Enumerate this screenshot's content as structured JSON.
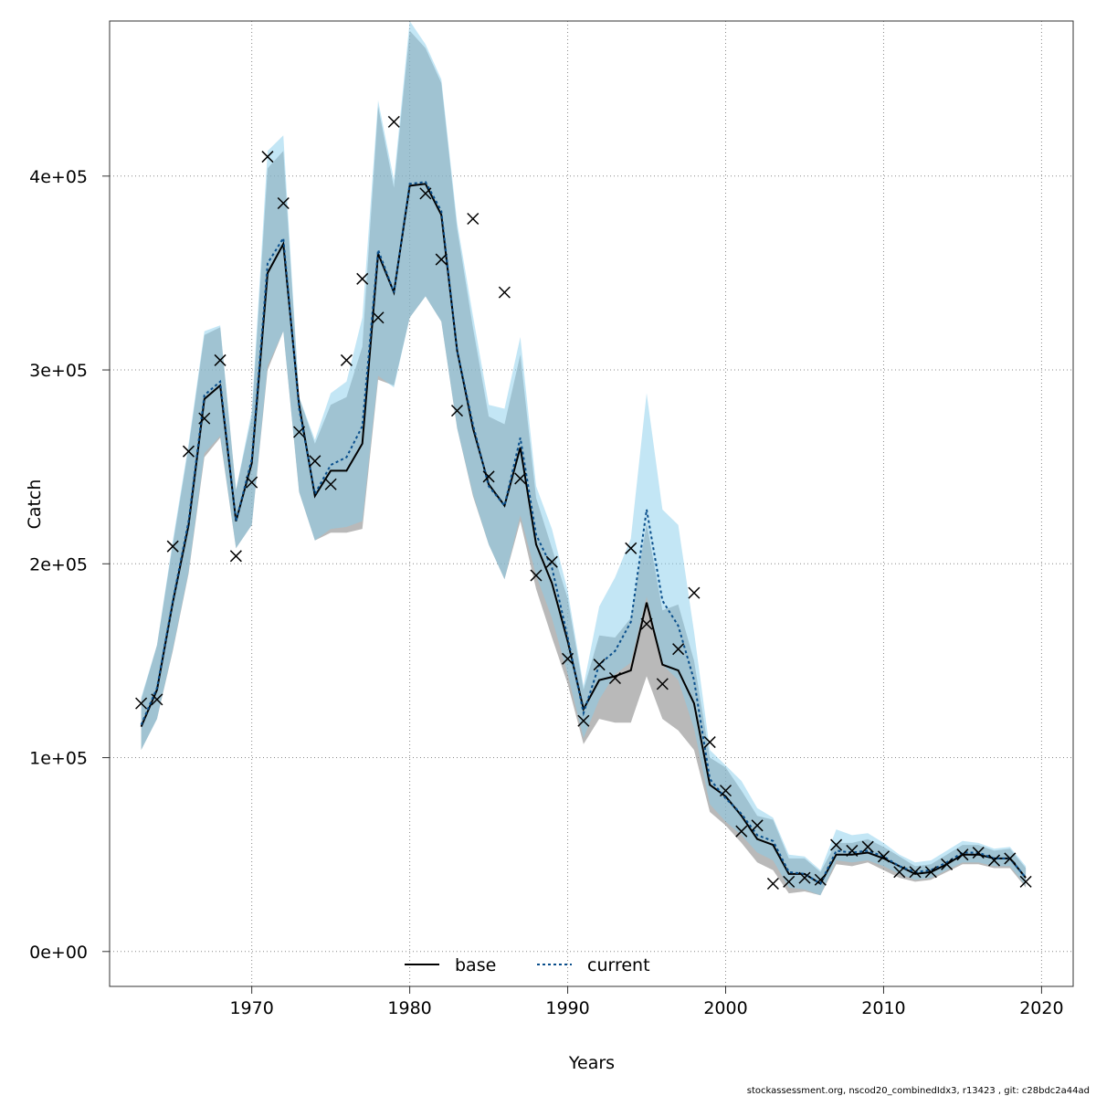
{
  "chart_data": {
    "type": "line",
    "xlabel": "Years",
    "ylabel": "Catch",
    "xlim": [
      1961,
      2022
    ],
    "ylim": [
      -18000,
      480000
    ],
    "x_ticks": [
      1970,
      1980,
      1990,
      2000,
      2010,
      2020
    ],
    "y_ticks": [
      0,
      100000,
      200000,
      300000,
      400000
    ],
    "y_tick_labels": [
      "0e+00",
      "1e+05",
      "2e+05",
      "3e+05",
      "4e+05"
    ],
    "grid": true,
    "legend_placement": "bottom",
    "colors": {
      "base_line": "#000000",
      "current_line": "#0a4f8c",
      "base_band": "#808080",
      "current_band": "#87ceeb"
    },
    "years": [
      1963,
      1964,
      1965,
      1966,
      1967,
      1968,
      1969,
      1970,
      1971,
      1972,
      1973,
      1974,
      1975,
      1976,
      1977,
      1978,
      1979,
      1980,
      1981,
      1982,
      1983,
      1984,
      1985,
      1986,
      1987,
      1988,
      1989,
      1990,
      1991,
      1992,
      1993,
      1994,
      1995,
      1996,
      1997,
      1998,
      1999,
      2000,
      2001,
      2002,
      2003,
      2004,
      2005,
      2006,
      2007,
      2008,
      2009,
      2010,
      2011,
      2012,
      2013,
      2014,
      2015,
      2016,
      2017,
      2018,
      2019
    ],
    "series": [
      {
        "name": "base",
        "estimate": [
          116000,
          135000,
          180000,
          220000,
          285000,
          292000,
          222000,
          252000,
          350000,
          365000,
          282000,
          235000,
          248000,
          248000,
          262000,
          360000,
          340000,
          395000,
          396000,
          380000,
          310000,
          270000,
          241000,
          230000,
          260000,
          210000,
          190000,
          160000,
          125000,
          140000,
          142000,
          145000,
          180000,
          148000,
          145000,
          128000,
          86000,
          80000,
          70000,
          58000,
          55000,
          40000,
          40000,
          35000,
          50000,
          50000,
          51000,
          48000,
          44000,
          40000,
          41000,
          45000,
          50000,
          50000,
          48000,
          48000,
          38000
        ],
        "lower": [
          104000,
          120000,
          155000,
          195000,
          255000,
          265000,
          208000,
          220000,
          300000,
          320000,
          237000,
          212000,
          216000,
          216000,
          218000,
          295000,
          292000,
          327000,
          338000,
          325000,
          270000,
          235000,
          210000,
          192000,
          222000,
          187000,
          162000,
          138000,
          107000,
          120000,
          118000,
          118000,
          142000,
          120000,
          114000,
          104000,
          72000,
          65000,
          56000,
          46000,
          42000,
          30000,
          31000,
          29000,
          45000,
          44000,
          46000,
          42000,
          38000,
          36000,
          37000,
          41000,
          45000,
          45000,
          43000,
          43000,
          33000
        ],
        "upper": [
          130000,
          158000,
          210000,
          260000,
          318000,
          322000,
          238000,
          276000,
          404000,
          413000,
          286000,
          262000,
          282000,
          286000,
          312000,
          436000,
          394000,
          475000,
          466000,
          448000,
          373000,
          322000,
          276000,
          272000,
          308000,
          234000,
          208000,
          182000,
          135000,
          163000,
          162000,
          172000,
          221000,
          176000,
          179000,
          150000,
          100000,
          95000,
          83000,
          70000,
          68000,
          48000,
          48000,
          41000,
          56000,
          56000,
          58000,
          54000,
          49000,
          44000,
          45000,
          50000,
          55000,
          55000,
          52000,
          53000,
          43000
        ]
      },
      {
        "name": "current",
        "estimate": [
          117000,
          136000,
          181000,
          222000,
          287000,
          294000,
          222000,
          254000,
          355000,
          368000,
          280000,
          236000,
          251000,
          255000,
          271000,
          362000,
          340000,
          396000,
          397000,
          382000,
          310000,
          272000,
          240000,
          230000,
          265000,
          215000,
          198000,
          162000,
          123000,
          148000,
          155000,
          170000,
          228000,
          181000,
          168000,
          140000,
          89000,
          79000,
          71000,
          60000,
          57000,
          41000,
          40000,
          35000,
          52000,
          51000,
          52000,
          49000,
          44000,
          41000,
          42000,
          46000,
          51000,
          51000,
          48000,
          48000,
          38000
        ],
        "lower": [
          104000,
          120000,
          156000,
          196000,
          257000,
          266000,
          208000,
          220000,
          302000,
          320000,
          237000,
          212000,
          218000,
          219000,
          222000,
          297000,
          291000,
          327000,
          338000,
          325000,
          270000,
          236000,
          210000,
          192000,
          225000,
          194000,
          172000,
          143000,
          110000,
          130000,
          143000,
          149000,
          183000,
          148000,
          140000,
          115000,
          76000,
          67000,
          60000,
          51000,
          47000,
          33000,
          32000,
          29000,
          47000,
          46000,
          47000,
          44000,
          40000,
          37000,
          38000,
          42000,
          46000,
          46000,
          44000,
          44000,
          34000
        ],
        "upper": [
          131000,
          158000,
          212000,
          262000,
          320000,
          323000,
          238000,
          279000,
          413000,
          421000,
          286000,
          264000,
          288000,
          294000,
          327000,
          439000,
          398000,
          480000,
          468000,
          450000,
          376000,
          328000,
          282000,
          280000,
          317000,
          240000,
          218000,
          186000,
          137000,
          178000,
          193000,
          213000,
          288000,
          228000,
          220000,
          165000,
          104000,
          96000,
          88000,
          74000,
          69000,
          50000,
          49000,
          42000,
          63000,
          60000,
          61000,
          56000,
          50000,
          46000,
          47000,
          52000,
          57000,
          56000,
          53000,
          54000,
          44000
        ]
      }
    ],
    "observations": {
      "name": "observed catch",
      "marker": "x",
      "x": [
        1963,
        1964,
        1965,
        1966,
        1967,
        1968,
        1969,
        1970,
        1971,
        1972,
        1973,
        1974,
        1975,
        1976,
        1977,
        1978,
        1979,
        1981,
        1982,
        1983,
        1984,
        1985,
        1986,
        1987,
        1988,
        1989,
        1990,
        1991,
        1992,
        1993,
        1994,
        1995,
        1996,
        1997,
        1998,
        1999,
        2000,
        2001,
        2002,
        2003,
        2004,
        2005,
        2006,
        2007,
        2008,
        2009,
        2010,
        2011,
        2012,
        2013,
        2014,
        2015,
        2016,
        2017,
        2018,
        2019
      ],
      "y": [
        128000,
        130000,
        209000,
        258000,
        275000,
        305000,
        204000,
        242000,
        410000,
        386000,
        268000,
        253000,
        241000,
        305000,
        347000,
        327000,
        428000,
        391000,
        357000,
        279000,
        378000,
        245000,
        340000,
        244000,
        194000,
        201000,
        151000,
        119000,
        148000,
        141000,
        208000,
        169000,
        138000,
        156000,
        185000,
        108000,
        83000,
        62000,
        65000,
        35000,
        36000,
        38000,
        37000,
        55000,
        52000,
        54000,
        49000,
        41000,
        41000,
        41000,
        45000,
        50000,
        51000,
        47000,
        48000,
        36000
      ]
    },
    "legend": [
      "base",
      "current"
    ],
    "footer_note": "stockassessment.org, nscod20_combinedIdx3, r13423 , git: c28bdc2a44ad"
  }
}
